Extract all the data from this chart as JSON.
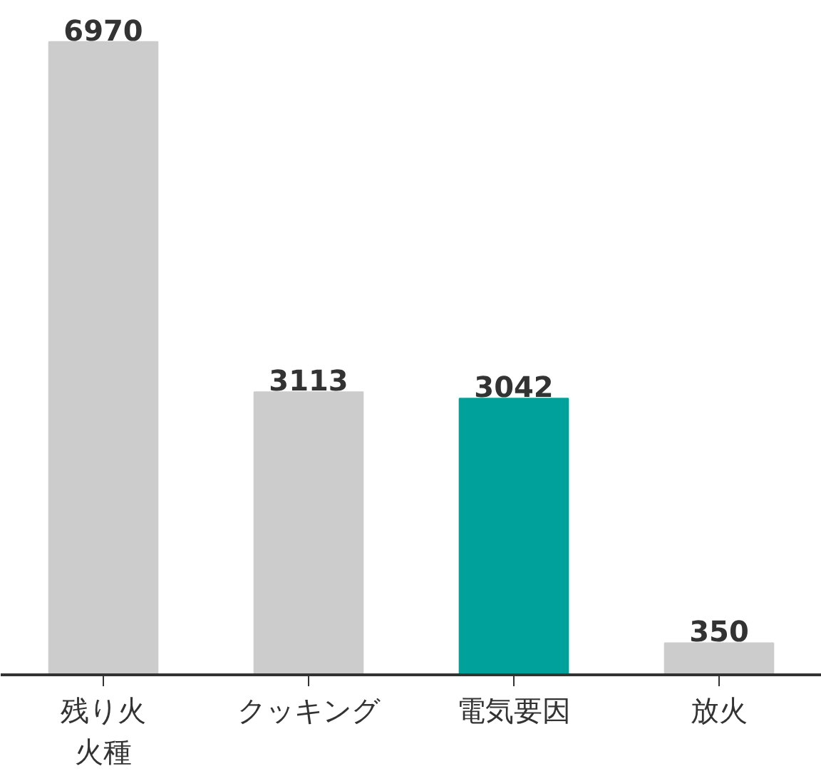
{
  "chart_data": {
    "type": "bar",
    "categories": [
      "残り火火種",
      "クッキング",
      "電気要因",
      "放火"
    ],
    "values": [
      6970,
      3113,
      3042,
      350
    ],
    "colors": [
      "#cccccc",
      "#cccccc",
      "#00a19a",
      "#cccccc"
    ],
    "data_labels": true,
    "grid": false,
    "tick_labels": "x"
  }
}
